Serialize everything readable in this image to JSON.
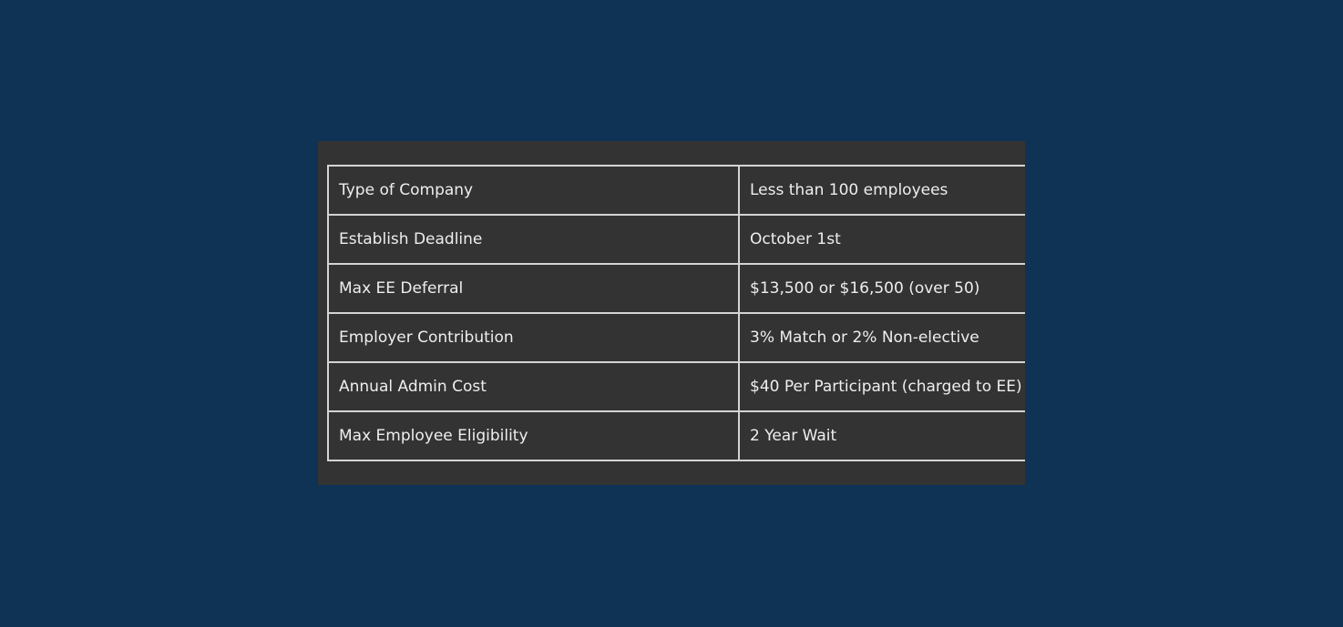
{
  "theme": {
    "page_bg": "#0e3355",
    "panel_bg": "#333333",
    "border_color": "#d4d4d4",
    "text_color": "#eeeeee"
  },
  "table": {
    "rows": [
      {
        "label": "Type of Company",
        "value": "Less than 100 employees"
      },
      {
        "label": "Establish Deadline",
        "value": "October 1st"
      },
      {
        "label": "Max EE Deferral",
        "value": "$13,500 or $16,500 (over 50)"
      },
      {
        "label": "Employer Contribution",
        "value": "3% Match or 2% Non-elective"
      },
      {
        "label": "Annual Admin Cost",
        "value": "$40 Per Participant (charged to EE)"
      },
      {
        "label": "Max Employee Eligibility",
        "value": "2 Year Wait"
      }
    ]
  }
}
